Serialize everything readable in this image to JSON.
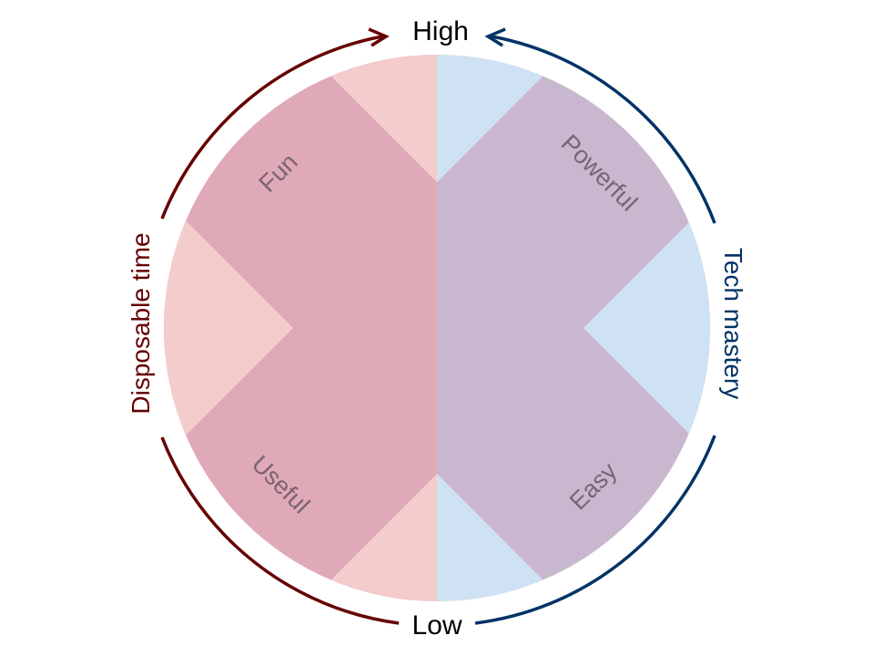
{
  "labels": {
    "high": "High",
    "low": "Low",
    "left_axis": "Disposable time",
    "right_axis": "Tech mastery",
    "quadrants": {
      "top_left": "Fun",
      "top_right": "Powerful",
      "bottom_left": "Useful",
      "bottom_right": "Easy"
    }
  },
  "colors": {
    "left_light": "#f4cccc",
    "left_dark": "#dfa9b8",
    "right_light": "#cfe2f3",
    "right_dark": "#c9b7cf",
    "left_arrow": "#660000",
    "right_arrow": "#003366",
    "quadrant_text": "#7a6470"
  }
}
